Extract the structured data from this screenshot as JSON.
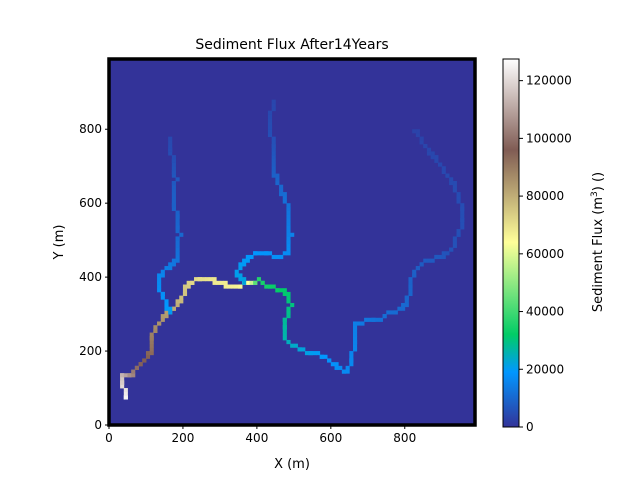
{
  "chart_data": {
    "type": "heatmap",
    "title": "Sediment Flux After14Years",
    "xlabel": "X (m)",
    "ylabel": "Y (m)",
    "xlim": [
      0,
      990
    ],
    "ylim": [
      0,
      990
    ],
    "xticks": [
      0,
      200,
      400,
      600,
      800
    ],
    "yticks": [
      0,
      200,
      400,
      600,
      800
    ],
    "grid": false,
    "colorbar": {
      "label": "Sediment Flux ($m^3$) ()",
      "min": 0,
      "max": 127500,
      "ticks": [
        0,
        20000,
        40000,
        60000,
        80000,
        100000,
        120000
      ],
      "colormap": "terrain",
      "stops": [
        {
          "v": 0,
          "color": "#333399"
        },
        {
          "v": 19000,
          "color": "#0197ff"
        },
        {
          "v": 32000,
          "color": "#01cc66"
        },
        {
          "v": 64000,
          "color": "#ffff99"
        },
        {
          "v": 96000,
          "color": "#805c54"
        },
        {
          "v": 127500,
          "color": "#ffffff"
        }
      ]
    },
    "background_value": 0,
    "channels": [
      {
        "name": "main-channel",
        "points": [
          [
            40,
            65
          ],
          [
            35,
            90
          ],
          [
            25,
            105
          ],
          [
            25,
            130
          ],
          [
            40,
            130
          ],
          [
            50,
            125
          ],
          [
            65,
            145
          ],
          [
            80,
            160
          ],
          [
            100,
            180
          ],
          [
            110,
            200
          ],
          [
            110,
            225
          ],
          [
            115,
            245
          ],
          [
            125,
            265
          ],
          [
            140,
            285
          ],
          [
            160,
            300
          ],
          [
            175,
            320
          ],
          [
            190,
            330
          ],
          [
            195,
            345
          ],
          [
            200,
            365
          ],
          [
            210,
            375
          ],
          [
            230,
            385
          ],
          [
            250,
            390
          ],
          [
            270,
            390
          ],
          [
            290,
            380
          ],
          [
            320,
            370
          ],
          [
            345,
            370
          ],
          [
            370,
            380
          ],
          [
            400,
            385
          ],
          [
            420,
            370
          ],
          [
            440,
            365
          ],
          [
            460,
            360
          ],
          [
            475,
            345
          ],
          [
            485,
            320
          ],
          [
            480,
            295
          ],
          [
            470,
            275
          ],
          [
            465,
            255
          ],
          [
            470,
            230
          ],
          [
            490,
            210
          ],
          [
            520,
            195
          ],
          [
            550,
            190
          ],
          [
            580,
            175
          ],
          [
            600,
            160
          ],
          [
            620,
            145
          ],
          [
            640,
            140
          ],
          [
            650,
            165
          ],
          [
            655,
            200
          ],
          [
            660,
            230
          ],
          [
            660,
            265
          ],
          [
            690,
            275
          ],
          [
            720,
            280
          ],
          [
            750,
            295
          ],
          [
            780,
            305
          ],
          [
            800,
            320
          ],
          [
            805,
            350
          ],
          [
            810,
            380
          ],
          [
            820,
            410
          ],
          [
            835,
            430
          ],
          [
            860,
            440
          ],
          [
            890,
            450
          ],
          [
            910,
            460
          ]
        ],
        "flux": [
          127000,
          122000,
          118000,
          116000,
          110000,
          106000,
          100000,
          97000,
          95000,
          92000,
          90000,
          88000,
          86000,
          84000,
          82000,
          80000,
          78000,
          76000,
          75000,
          73000,
          71000,
          70000,
          69000,
          68000,
          67000,
          66000,
          64000,
          36000,
          34000,
          33000,
          32000,
          31000,
          30000,
          29000,
          28000,
          27000,
          26000,
          24000,
          22000,
          20000,
          19000,
          18000,
          17000,
          16500,
          16000,
          15500,
          15000,
          14500,
          13000,
          12000,
          11000,
          10500,
          10000,
          9500,
          9000,
          8500,
          8000,
          7500,
          7000,
          6000
        ]
      },
      {
        "name": "north-branch",
        "points": [
          [
            360,
            380
          ],
          [
            345,
            395
          ],
          [
            340,
            410
          ],
          [
            350,
            425
          ],
          [
            365,
            440
          ],
          [
            385,
            455
          ],
          [
            410,
            460
          ],
          [
            430,
            455
          ],
          [
            455,
            450
          ],
          [
            470,
            455
          ],
          [
            480,
            465
          ],
          [
            480,
            485
          ],
          [
            485,
            505
          ],
          [
            480,
            530
          ],
          [
            480,
            560
          ],
          [
            475,
            590
          ],
          [
            465,
            615
          ],
          [
            455,
            640
          ],
          [
            445,
            665
          ],
          [
            440,
            690
          ],
          [
            440,
            720
          ],
          [
            435,
            745
          ],
          [
            435,
            770
          ],
          [
            430,
            795
          ],
          [
            430,
            820
          ],
          [
            435,
            850
          ],
          [
            440,
            875
          ]
        ],
        "flux": [
          22000,
          21000,
          20500,
          20000,
          19500,
          19000,
          18500,
          18000,
          17500,
          17000,
          16500,
          16000,
          15000,
          14000,
          13000,
          12000,
          11000,
          10000,
          9000,
          8000,
          7000,
          6000,
          5500,
          5000,
          4500,
          4000,
          3500
        ]
      },
      {
        "name": "west-branch",
        "points": [
          [
            160,
            300
          ],
          [
            150,
            320
          ],
          [
            140,
            345
          ],
          [
            130,
            370
          ],
          [
            130,
            395
          ],
          [
            140,
            410
          ],
          [
            155,
            420
          ],
          [
            170,
            430
          ],
          [
            180,
            450
          ],
          [
            180,
            480
          ],
          [
            185,
            510
          ],
          [
            180,
            540
          ],
          [
            175,
            570
          ],
          [
            170,
            600
          ],
          [
            170,
            630
          ],
          [
            175,
            660
          ],
          [
            170,
            690
          ],
          [
            165,
            720
          ],
          [
            160,
            750
          ],
          [
            160,
            780
          ]
        ],
        "flux": [
          20000,
          19000,
          18000,
          17000,
          16000,
          15000,
          14000,
          13000,
          12000,
          11000,
          10000,
          9500,
          9000,
          8500,
          8000,
          7000,
          6000,
          5000,
          4500,
          4000
        ]
      },
      {
        "name": "northeast-branch",
        "points": [
          [
            910,
            460
          ],
          [
            925,
            480
          ],
          [
            935,
            505
          ],
          [
            945,
            530
          ],
          [
            950,
            560
          ],
          [
            945,
            590
          ],
          [
            935,
            620
          ],
          [
            925,
            645
          ],
          [
            910,
            665
          ],
          [
            895,
            690
          ],
          [
            880,
            710
          ],
          [
            865,
            725
          ],
          [
            850,
            745
          ],
          [
            840,
            765
          ],
          [
            830,
            780
          ],
          [
            820,
            800
          ]
        ],
        "flux": [
          6000,
          5800,
          5600,
          5400,
          5200,
          5000,
          4800,
          4600,
          4400,
          4200,
          4000,
          3800,
          3600,
          3400,
          3200,
          3000
        ]
      }
    ]
  }
}
